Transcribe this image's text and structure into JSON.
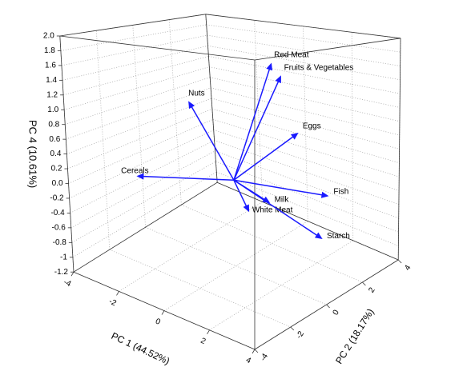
{
  "chart_data": {
    "type": "biplot3d",
    "x_label": "PC 1 (44.52%)",
    "y_label": "PC 2 (18.17%)",
    "z_label": "PC 4 (10.61%)",
    "xlim": [
      -4,
      4
    ],
    "ylim": [
      -4,
      4
    ],
    "zlim": [
      -1.2,
      2.0
    ],
    "xticks": [
      -4,
      -2,
      0,
      2,
      4
    ],
    "yticks": [
      -4,
      -2,
      0,
      2,
      4
    ],
    "zticks": [
      {
        "value": -1.2,
        "label": "-1.2"
      },
      -1.0,
      -0.8,
      -0.6,
      -0.4,
      -0.2,
      {
        "value": 0,
        "label": "0.0"
      },
      0.2,
      0.4,
      0.6,
      0.8,
      {
        "value": 1,
        "label": "1.0"
      },
      1.2,
      1.4,
      1.6,
      1.8,
      {
        "value": 2,
        "label": "2.0"
      }
    ],
    "grid": true,
    "color": "#1a1aff",
    "labels": [
      "Red Meat",
      "Fruits & Vegetables",
      "Nuts",
      "Eggs",
      "Cereals",
      "Fish",
      "Milk",
      "White Meat",
      "Starch"
    ],
    "x": [
      -0.12,
      0.07,
      -1.69,
      1.32,
      -2.7,
      2.9,
      1.38,
      0.55,
      3.41
    ],
    "y": [
      2.38,
      2.64,
      -0.19,
      1.91,
      -1.91,
      1.52,
      0.22,
      0.11,
      0.52
    ],
    "z": [
      1.5,
      1.3,
      1.0,
      0.6,
      0.0,
      -0.1,
      -0.2,
      -0.4,
      -0.5
    ]
  }
}
